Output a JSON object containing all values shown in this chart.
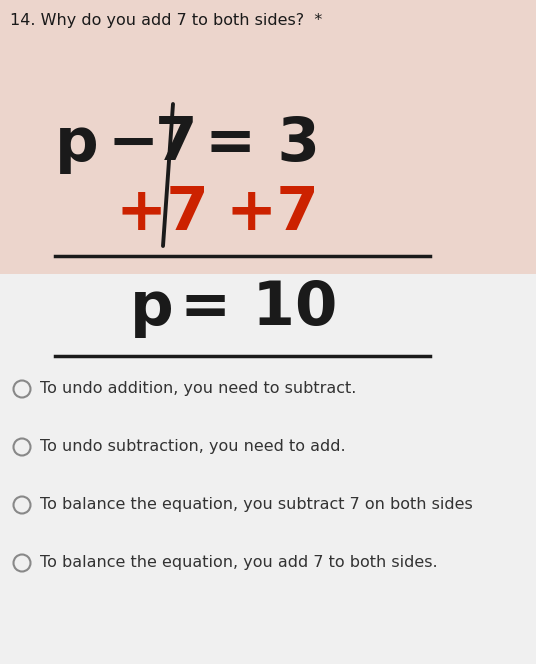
{
  "title": "14. Why do you add 7 to both sides?  *",
  "title_fontsize": 11.5,
  "bg_top": "#ecd5cc",
  "bg_bottom": "#ffffff",
  "options": [
    "To undo addition, you need to subtract.",
    "To undo subtraction, you need to add.",
    "To balance the equation, you subtract 7 on both sides",
    "To balance the equation, you add 7 to both sides."
  ],
  "option_fontsize": 11.5,
  "black_color": "#1a1a1a",
  "red_color": "#cc2200",
  "circle_color": "#555555",
  "eq_fontsize": 44,
  "eq_fontsize2": 42
}
